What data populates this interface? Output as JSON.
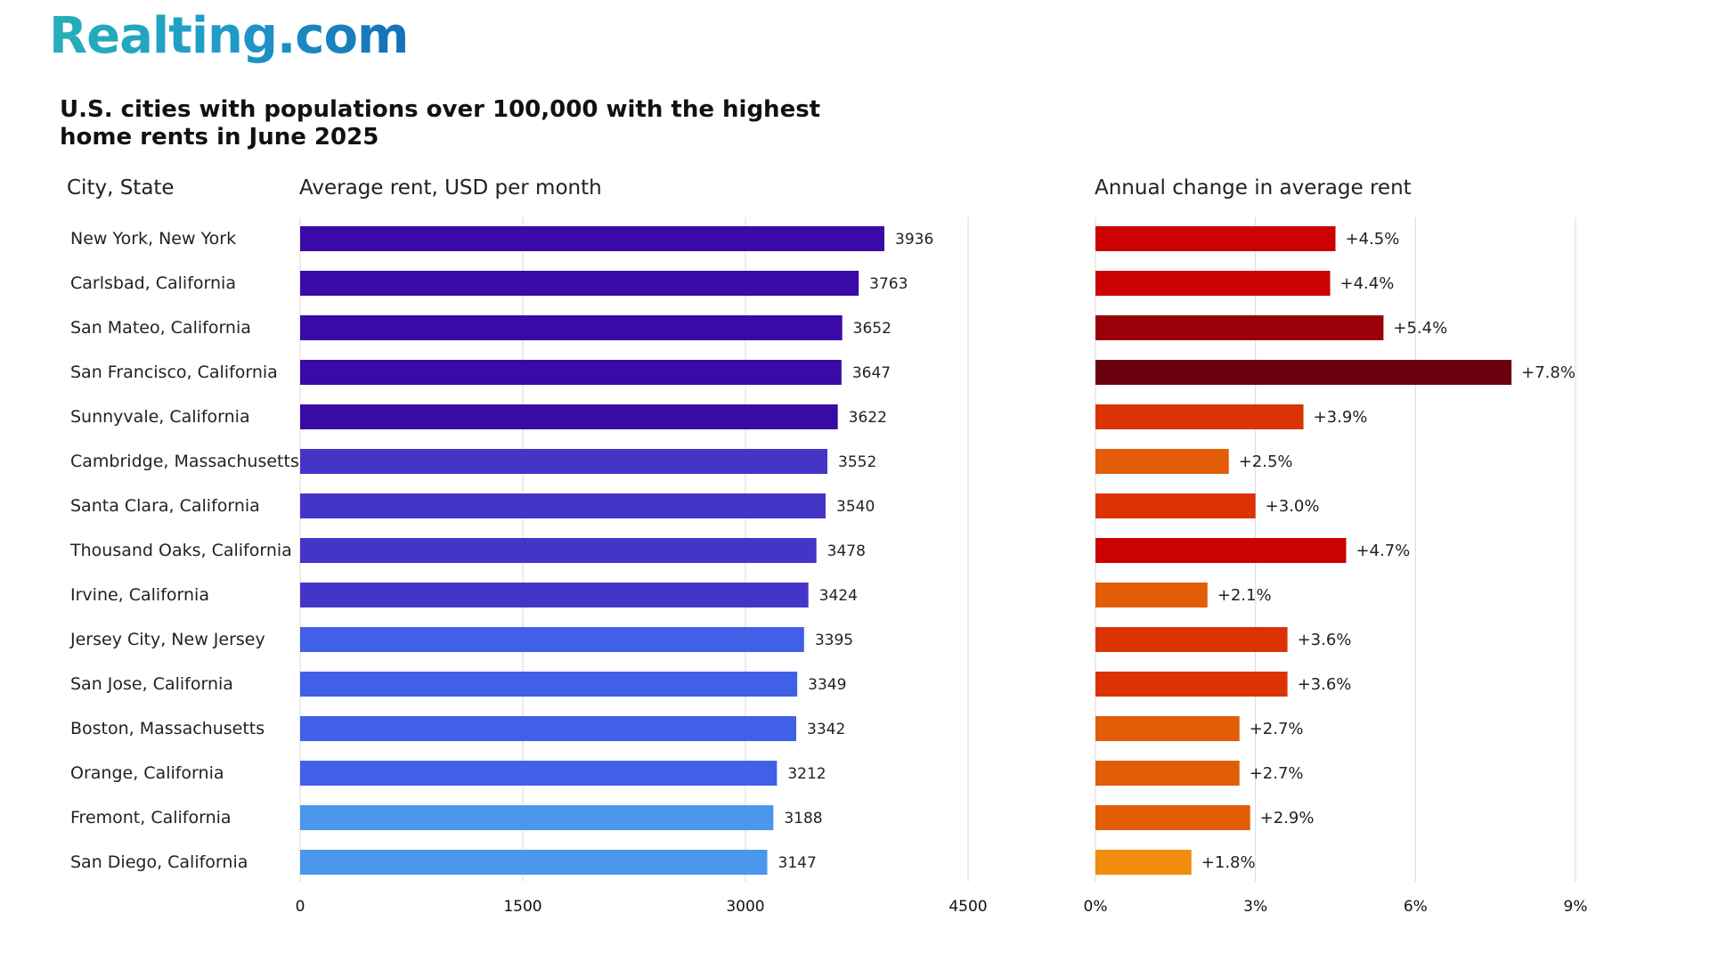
{
  "brand": {
    "logo_text": "Realting.com"
  },
  "headers": {
    "title": "U.S. cities with populations over 100,000 with the highest home rents in June 2025",
    "city_col": "City, State",
    "rent_col": "Average rent, USD per month",
    "change_col": "Annual change in average rent"
  },
  "colors": {
    "rent_tiers": [
      "#3a0aa6",
      "#4435c8",
      "#4160e8",
      "#4b97ee"
    ],
    "change_shades": [
      "#f28c0f",
      "#e35c08",
      "#dc3305",
      "#cc0202",
      "#990008",
      "#6a0010"
    ],
    "grid": "#d9d9d9"
  },
  "chart_data": [
    {
      "type": "bar",
      "orientation": "horizontal",
      "title": "Average rent, USD per month",
      "categories": [
        "New York, New York",
        "Carlsbad, California",
        "San Mateo, California",
        "San Francisco, California",
        "Sunnyvale, California",
        "Cambridge, Massachusetts",
        "Santa Clara, California",
        "Thousand Oaks, California",
        "Irvine, California",
        "Jersey City, New Jersey",
        "San Jose, California",
        "Boston, Massachusetts",
        "Orange, California",
        "Fremont, California",
        "San Diego, California"
      ],
      "values": [
        3936,
        3763,
        3652,
        3647,
        3622,
        3552,
        3540,
        3478,
        3424,
        3395,
        3349,
        3342,
        3212,
        3188,
        3147
      ],
      "data_labels": [
        "3936",
        "3763",
        "3652",
        "3647",
        "3622",
        "3552",
        "3540",
        "3478",
        "3424",
        "3395",
        "3349",
        "3342",
        "3212",
        "3188",
        "3147"
      ],
      "xlim": [
        0,
        4500
      ],
      "xticks": [
        0,
        1500,
        3000,
        4500
      ],
      "xtick_labels": [
        "0",
        "1500",
        "3000",
        "4500"
      ],
      "grid": true
    },
    {
      "type": "bar",
      "orientation": "horizontal",
      "title": "Annual change in average rent",
      "categories": [
        "New York, New York",
        "Carlsbad, California",
        "San Mateo, California",
        "San Francisco, California",
        "Sunnyvale, California",
        "Cambridge, Massachusetts",
        "Santa Clara, California",
        "Thousand Oaks, California",
        "Irvine, California",
        "Jersey City, New Jersey",
        "San Jose, California",
        "Boston, Massachusetts",
        "Orange, California",
        "Fremont, California",
        "San Diego, California"
      ],
      "values": [
        4.5,
        4.4,
        5.4,
        7.8,
        3.9,
        2.5,
        3.0,
        4.7,
        2.1,
        3.6,
        3.6,
        2.7,
        2.7,
        2.9,
        1.8
      ],
      "data_labels": [
        "+4.5%",
        "+4.4%",
        "+5.4%",
        "+7.8%",
        "+3.9%",
        "+2.5%",
        "+3.0%",
        "+4.7%",
        "+2.1%",
        "+3.6%",
        "+3.6%",
        "+2.7%",
        "+2.7%",
        "+2.9%",
        "+1.8%"
      ],
      "xlim": [
        0,
        9
      ],
      "xticks": [
        0,
        3,
        6,
        9
      ],
      "xtick_labels": [
        "0%",
        "3%",
        "6%",
        "9%"
      ],
      "grid": true
    }
  ]
}
